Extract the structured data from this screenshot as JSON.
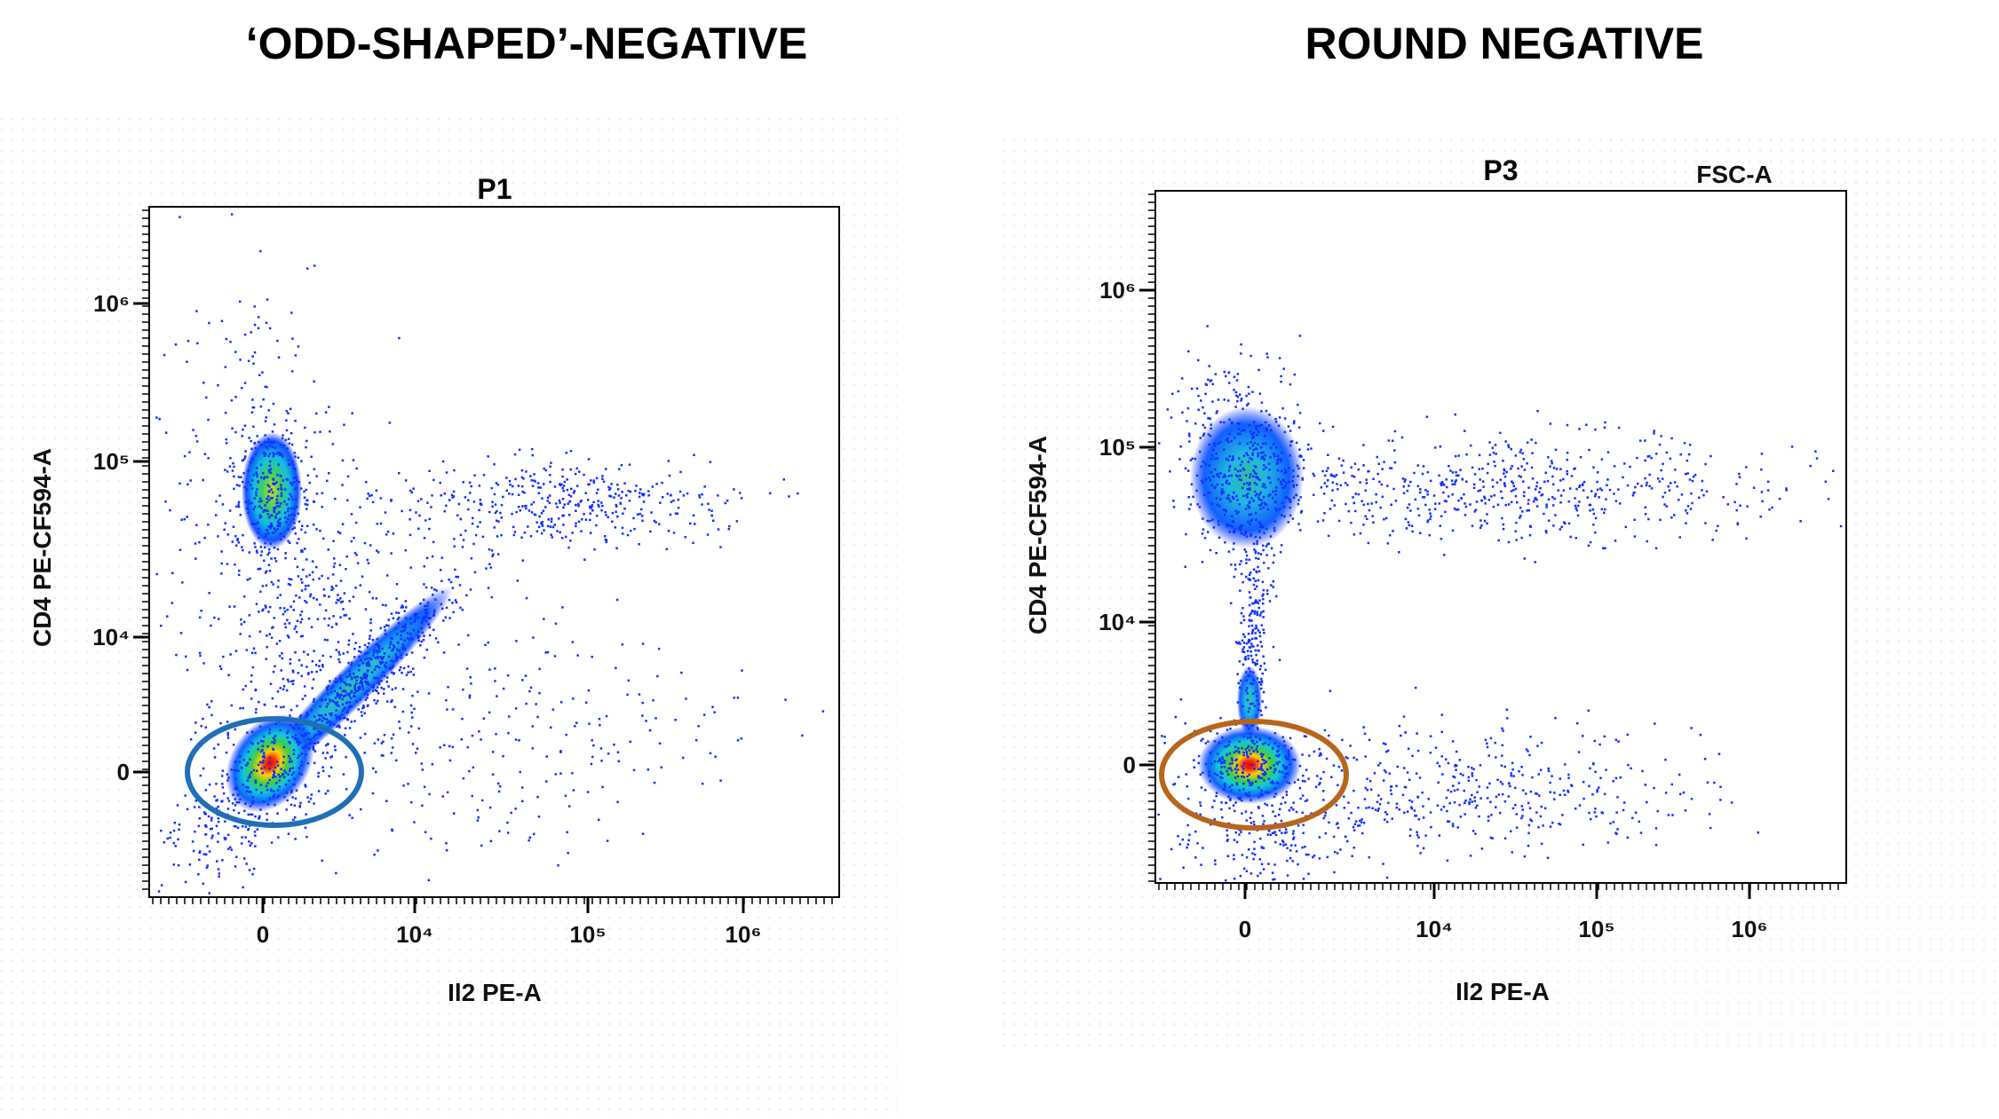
{
  "panels": [
    {
      "heading": "‘ODD-SHAPED’-NEGATIVE",
      "plot_title": "P1",
      "x_axis_label": "Il2 PE-A",
      "y_axis_label": "CD4 PE-CF594-A",
      "x_tick_labels": [
        "0",
        "10⁴",
        "10⁵",
        "10⁶"
      ],
      "y_tick_labels": [
        "10⁶",
        "10⁵",
        "10⁴",
        "0"
      ]
    },
    {
      "heading": "ROUND NEGATIVE",
      "plot_title": "P3",
      "corner_label": "FSC-A",
      "x_axis_label": "Il2 PE-A",
      "y_axis_label": "CD4 PE-CF594-A",
      "x_tick_labels": [
        "0",
        "10⁴",
        "10⁵",
        "10⁶"
      ],
      "y_tick_labels": [
        "10⁶",
        "10⁵",
        "10⁴",
        "0"
      ]
    }
  ]
}
